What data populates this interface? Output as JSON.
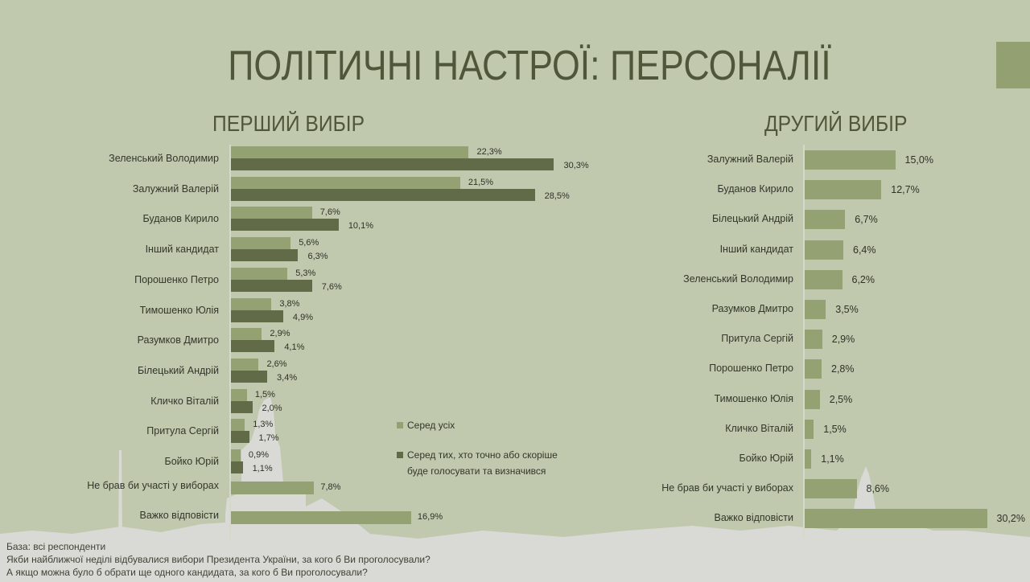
{
  "title": "ПОЛІТИЧНІ НАСТРОЇ: ПЕРСОНАЛІЇ",
  "colors": {
    "background": "#c0c8ae",
    "bar_all": "#93a173",
    "bar_decided": "#616b48",
    "title": "#4f5639",
    "corner_box": "#93a072"
  },
  "first_choice": {
    "subtitle": "ПЕРШИЙ ВИБІР",
    "legend": {
      "all": "Серед усіх",
      "decided_line1": "Серед тих, хто точно або скоріше",
      "decided_line2": "буде голосувати та визначився"
    }
  },
  "second_choice": {
    "subtitle": "ДРУГИЙ ВИБІР"
  },
  "notes": {
    "base": "База: всі респонденти",
    "question1": "Якби найближчої неділі відбувалися вибори Президента України, за кого б Ви проголосували?",
    "question2": "А якщо можна було б обрати ще одного кандидата, за кого б Ви проголосували?"
  },
  "chart_data": [
    {
      "type": "bar",
      "orientation": "horizontal",
      "title": "ПЕРШИЙ ВИБІР",
      "categories": [
        "Зеленський Володимир",
        "Залужний Валерій",
        "Буданов Кирило",
        "Інший кандидат",
        "Порошенко Петро",
        "Тимошенко Юлія",
        "Разумков Дмитро",
        "Білецький Андрій",
        "Кличко Віталій",
        "Притула Сергій",
        "Бойко Юрій",
        "Не брав би участі у виборах",
        "Важко відповісти"
      ],
      "series": [
        {
          "name": "Серед усіх",
          "values": [
            22.3,
            21.5,
            7.6,
            5.6,
            5.3,
            3.8,
            2.9,
            2.6,
            1.5,
            1.3,
            0.9,
            7.8,
            16.9
          ],
          "labels": [
            "22,3%",
            "21,5%",
            "7,6%",
            "5,6%",
            "5,3%",
            "3,8%",
            "2,9%",
            "2,6%",
            "1,5%",
            "1,3%",
            "0,9%",
            "7,8%",
            "16,9%"
          ]
        },
        {
          "name": "Серед тих, хто точно або скоріше буде голосувати та визначився",
          "values": [
            30.3,
            28.5,
            10.1,
            6.3,
            7.6,
            4.9,
            4.1,
            3.4,
            2.0,
            1.7,
            1.1,
            null,
            null
          ],
          "labels": [
            "30,3%",
            "28,5%",
            "10,1%",
            "6,3%",
            "7,6%",
            "4,9%",
            "4,1%",
            "3,4%",
            "2,0%",
            "1,7%",
            "1,1%",
            "",
            ""
          ]
        }
      ],
      "xlabel": "",
      "ylabel": "",
      "unit": "%",
      "legend_position": "right-bottom",
      "grid": false
    },
    {
      "type": "bar",
      "orientation": "horizontal",
      "title": "ДРУГИЙ ВИБІР",
      "categories": [
        "Залужний Валерій",
        "Буданов Кирило",
        "Білецький Андрій",
        "Інший кандидат",
        "Зеленський Володимир",
        "Разумков Дмитро",
        "Притула Сергій",
        "Порошенко Петро",
        "Тимошенко Юлія",
        "Кличко Віталій",
        "Бойко Юрій",
        "Не брав би участі у виборах",
        "Важко відповісти"
      ],
      "values": [
        15.0,
        12.7,
        6.7,
        6.4,
        6.2,
        3.5,
        2.9,
        2.8,
        2.5,
        1.5,
        1.1,
        8.6,
        30.2
      ],
      "labels": [
        "15,0%",
        "12,7%",
        "6,7%",
        "6,4%",
        "6,2%",
        "3,5%",
        "2,9%",
        "2,8%",
        "2,5%",
        "1,5%",
        "1,1%",
        "8,6%",
        "30,2%"
      ],
      "xlabel": "",
      "ylabel": "",
      "unit": "%",
      "grid": false
    }
  ]
}
